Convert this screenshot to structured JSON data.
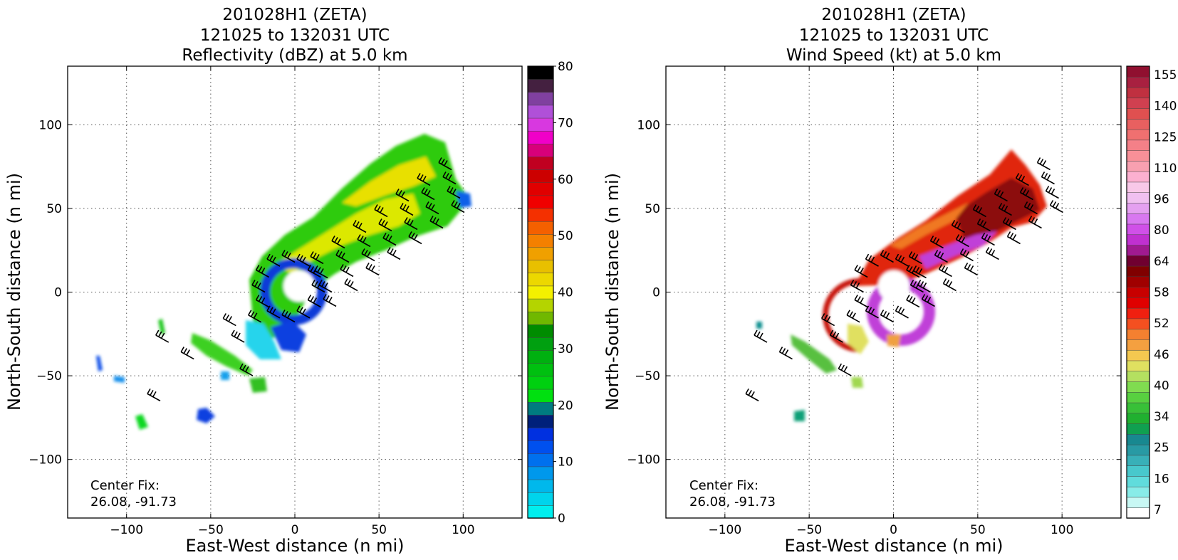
{
  "chart_data": [
    {
      "type": "heatmap",
      "title": [
        "201028H1 (ZETA)",
        "121025 to 132031 UTC",
        "Reflectivity (dBZ) at 5.0 km"
      ],
      "xlabel": "East-West distance (n mi)",
      "ylabel": "North-South distance (n mi)",
      "xlim": [
        -135,
        135
      ],
      "ylim": [
        -135,
        135
      ],
      "xticks": [
        -100,
        -50,
        0,
        50,
        100
      ],
      "yticks": [
        -100,
        -50,
        0,
        50,
        100
      ],
      "xticklabels": [
        "−100",
        "−50",
        "0",
        "50",
        "100"
      ],
      "yticklabels": [
        "−100",
        "−50",
        "0",
        "50",
        "100"
      ],
      "grid": true,
      "annotation": [
        "Center Fix:",
        "26.08, -91.73"
      ],
      "colorbar": {
        "min": 0,
        "max": 80,
        "ticks": [
          0,
          10,
          20,
          30,
          40,
          50,
          60,
          70,
          80
        ],
        "ticklabels": [
          "0",
          "10",
          "20",
          "30",
          "40",
          "50",
          "60",
          "70",
          "80"
        ],
        "colors": [
          "#00eeee",
          "#00d4ec",
          "#00b8ec",
          "#0098ec",
          "#0070ee",
          "#0050ee",
          "#0030e0",
          "#00207a",
          "#007b80",
          "#00e010",
          "#00d010",
          "#00c010",
          "#00b010",
          "#00a010",
          "#008c00",
          "#70b800",
          "#b4d400",
          "#f4f000",
          "#ecd800",
          "#e8c000",
          "#f0a000",
          "#f48000",
          "#f46000",
          "#f43000",
          "#f00000",
          "#e00000",
          "#cc0000",
          "#c00020",
          "#d8007a",
          "#f000c8",
          "#d838e0",
          "#b050d8",
          "#8040a0",
          "#442040",
          "#000000"
        ]
      },
      "field": {
        "description_regions": [
          {
            "label": "eyewall ring",
            "center": [
              0,
              3
            ],
            "value_range_dbz": [
              15,
              40
            ]
          },
          {
            "label": "rainband NE",
            "from": [
              -15,
              10
            ],
            "to": [
              100,
              60
            ],
            "value_range_dbz": [
              20,
              42
            ]
          },
          {
            "label": "outer bands SW",
            "from": [
              -120,
              -90
            ],
            "to": [
              -20,
              -35
            ],
            "value_range_dbz": [
              5,
              30
            ]
          }
        ]
      }
    },
    {
      "type": "heatmap",
      "title": [
        "201028H1 (ZETA)",
        "121025 to 132031 UTC",
        "Wind Speed (kt) at 5.0 km"
      ],
      "xlabel": "East-West distance (n mi)",
      "ylabel": "North-South distance (n mi)",
      "xlim": [
        -135,
        135
      ],
      "ylim": [
        -135,
        135
      ],
      "xticks": [
        -100,
        -50,
        0,
        50,
        100
      ],
      "yticks": [
        -100,
        -50,
        0,
        50,
        100
      ],
      "xticklabels": [
        "−100",
        "−50",
        "0",
        "50",
        "100"
      ],
      "yticklabels": [
        "−100",
        "−50",
        "0",
        "50",
        "100"
      ],
      "grid": true,
      "annotation": [
        "Center Fix:",
        "26.08, -91.73"
      ],
      "colorbar": {
        "ticklabels": [
          "7",
          "16",
          "25",
          "34",
          "40",
          "46",
          "52",
          "58",
          "64",
          "80",
          "96",
          "110",
          "125",
          "140",
          "155"
        ],
        "colors": [
          "#ffffff",
          "#c8f8f4",
          "#88ece8",
          "#60dcdc",
          "#48c8cc",
          "#38b0b8",
          "#289aa4",
          "#188890",
          "#10a050",
          "#20b030",
          "#38c038",
          "#58d040",
          "#80dc50",
          "#b4e060",
          "#e0e060",
          "#f4c850",
          "#f4a040",
          "#f48030",
          "#f45020",
          "#f02010",
          "#e00000",
          "#c80000",
          "#a00000",
          "#800000",
          "#700030",
          "#a01a90",
          "#c030d0",
          "#d050e8",
          "#d878f0",
          "#e4a0f0",
          "#f0c0f0",
          "#f8c8e8",
          "#fcb0d0",
          "#f8a0b0",
          "#f89098",
          "#f48088",
          "#f07070",
          "#e86060",
          "#e05050",
          "#d04050",
          "#c03040",
          "#a82040",
          "#901030"
        ]
      }
    }
  ]
}
